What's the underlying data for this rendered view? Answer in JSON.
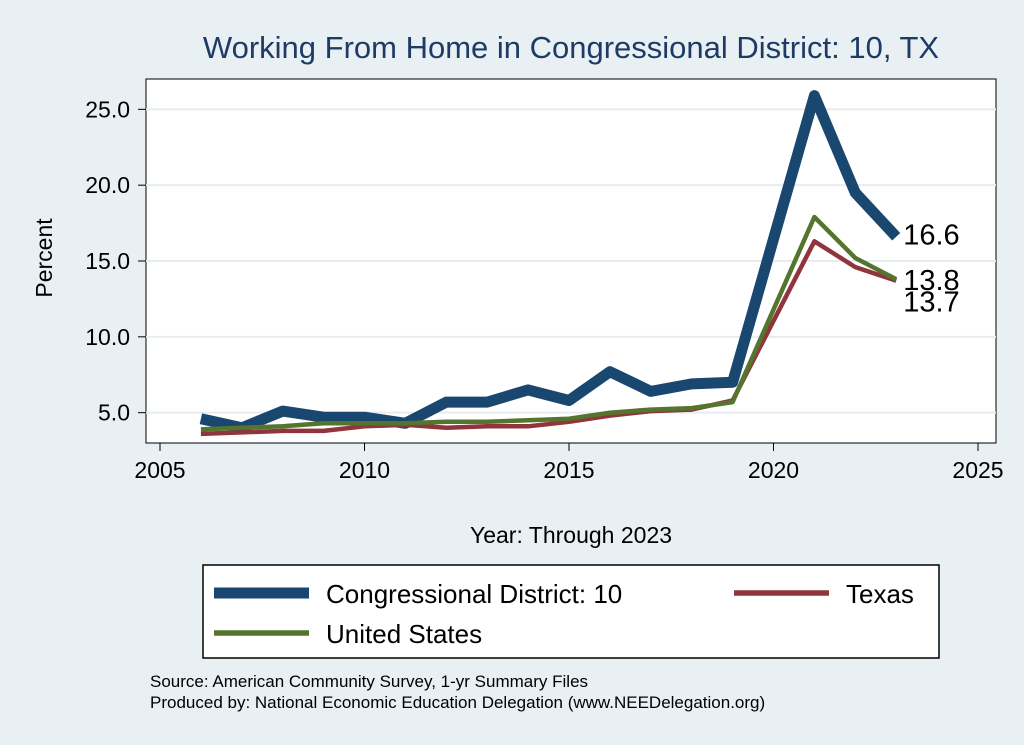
{
  "chart_data": {
    "type": "line",
    "title": "Working From Home in Congressional District: 10, TX",
    "xlabel": "Year: Through 2023",
    "ylabel": "Percent",
    "xlim": [
      2005,
      2025
    ],
    "ylim": [
      3,
      27
    ],
    "x_ticks": [
      "2005",
      "2010",
      "2015",
      "2020",
      "2025"
    ],
    "y_ticks": [
      "5.0",
      "10.0",
      "15.0",
      "20.0",
      "25.0"
    ],
    "grid": true,
    "legend_position": "bottom",
    "x": [
      2006,
      2007,
      2008,
      2009,
      2010,
      2011,
      2012,
      2013,
      2014,
      2015,
      2016,
      2017,
      2018,
      2019,
      2021,
      2022,
      2023
    ],
    "series": [
      {
        "name": "Congressional District: 10",
        "color": "#1a476f",
        "values": [
          4.6,
          4.0,
          5.1,
          4.7,
          4.7,
          4.3,
          5.7,
          5.7,
          6.5,
          5.8,
          7.7,
          6.4,
          6.9,
          7.0,
          25.9,
          19.5,
          16.6
        ],
        "end_label": "16.6"
      },
      {
        "name": "Texas",
        "color": "#90353b",
        "values": [
          3.6,
          3.7,
          3.8,
          3.8,
          4.1,
          4.2,
          4.0,
          4.1,
          4.1,
          4.4,
          4.8,
          5.1,
          5.2,
          5.8,
          16.3,
          14.6,
          13.7
        ],
        "end_label": "13.7"
      },
      {
        "name": "United States",
        "color": "#55752f",
        "values": [
          3.9,
          4.0,
          4.1,
          4.3,
          4.3,
          4.3,
          4.4,
          4.4,
          4.5,
          4.6,
          5.0,
          5.2,
          5.3,
          5.7,
          17.9,
          15.2,
          13.8
        ],
        "end_label": "13.8"
      }
    ],
    "notes": [
      "Source: American Community Survey, 1-yr Summary Files",
      "Produced by: National Economic Education Delegation (www.NEEDelegation.org)"
    ]
  }
}
